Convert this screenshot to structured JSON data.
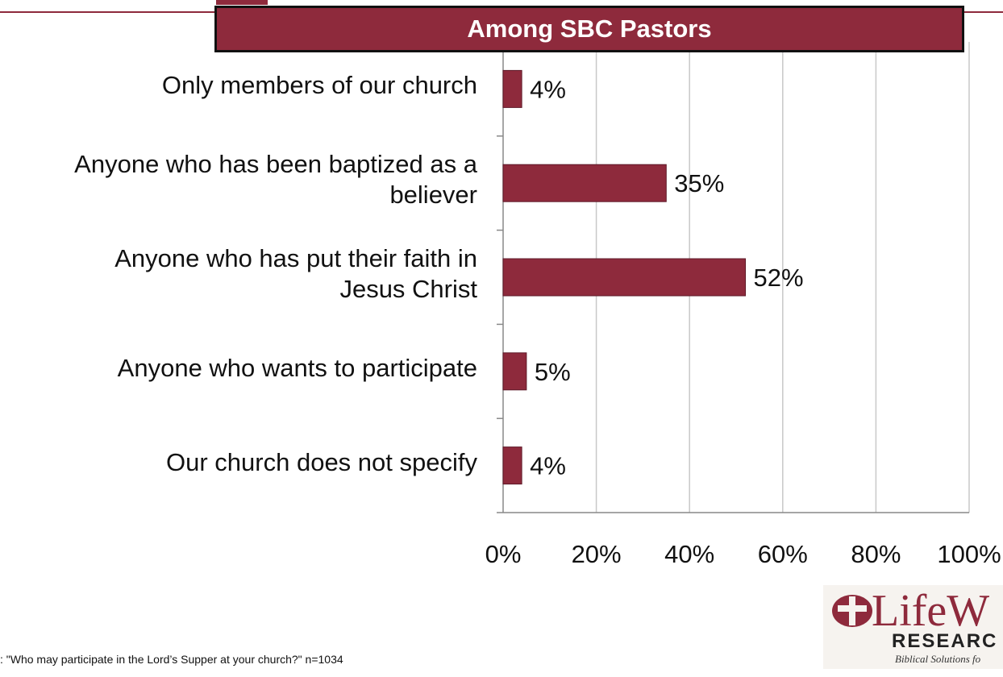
{
  "footnote": ": \"Who may participate in the Lord’s Supper at your church?\"  n=1034",
  "logo": {
    "wordmark": "LifeW",
    "line2": "RESEARC",
    "line3": "Biblical Solutions fo"
  },
  "colors": {
    "bar": "#8e2a3c",
    "banner": "#8e2a3c",
    "grid": "#c8c8c8"
  },
  "chart_data": {
    "type": "bar",
    "orientation": "horizontal",
    "title": "Among SBC Pastors",
    "categories": [
      "Only members of our church",
      "Anyone who has been baptized as a believer",
      "Anyone who has put their faith in Jesus Christ",
      "Anyone who wants to participate",
      "Our church does not specify"
    ],
    "category_lines": [
      [
        "Only members of our church"
      ],
      [
        "Anyone who has been baptized as a",
        "believer"
      ],
      [
        "Anyone who has put their faith in",
        "Jesus Christ"
      ],
      [
        "Anyone who wants to participate"
      ],
      [
        "Our church does not specify"
      ]
    ],
    "values": [
      4,
      35,
      52,
      5,
      4
    ],
    "value_labels": [
      "4%",
      "35%",
      "52%",
      "5%",
      "4%"
    ],
    "xlim": [
      0,
      100
    ],
    "xticks": [
      0,
      20,
      40,
      60,
      80,
      100
    ],
    "xtick_labels": [
      "0%",
      "20%",
      "40%",
      "60%",
      "80%",
      "100%"
    ],
    "grid": "vertical",
    "legend": "none"
  }
}
